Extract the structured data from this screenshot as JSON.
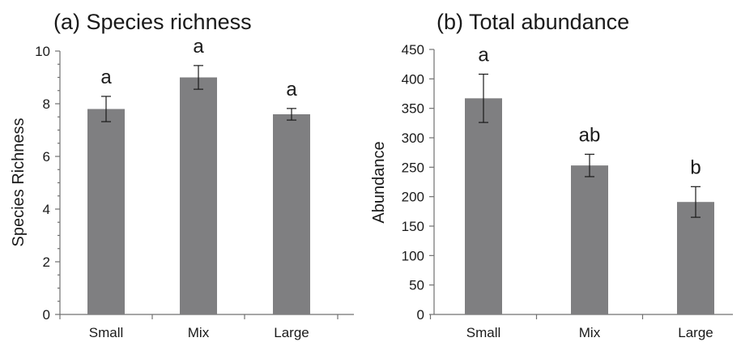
{
  "chart_data": [
    {
      "type": "bar",
      "title": "(a) Species richness",
      "ylabel": "Species Richness",
      "xlabel": "",
      "categories": [
        "Small",
        "Mix",
        "Large"
      ],
      "values": [
        7.8,
        9.0,
        7.6
      ],
      "error": [
        0.48,
        0.45,
        0.22
      ],
      "annotations": [
        "a",
        "a",
        "a"
      ],
      "ylim": [
        0,
        10
      ],
      "yticks": [
        0,
        2,
        4,
        6,
        8,
        10
      ],
      "minor_step": 0.5,
      "grid": false,
      "bar_color": "#7f7f81"
    },
    {
      "type": "bar",
      "title": "(b) Total abundance",
      "ylabel": "Abundance",
      "xlabel": "",
      "categories": [
        "Small",
        "Mix",
        "Large"
      ],
      "values": [
        367,
        253,
        191
      ],
      "error": [
        41,
        19,
        26
      ],
      "annotations": [
        "a",
        "ab",
        "b"
      ],
      "ylim": [
        0,
        450
      ],
      "yticks": [
        0,
        50,
        100,
        150,
        200,
        250,
        300,
        350,
        400,
        450
      ],
      "minor_step": null,
      "grid": false,
      "bar_color": "#7f7f81"
    }
  ]
}
